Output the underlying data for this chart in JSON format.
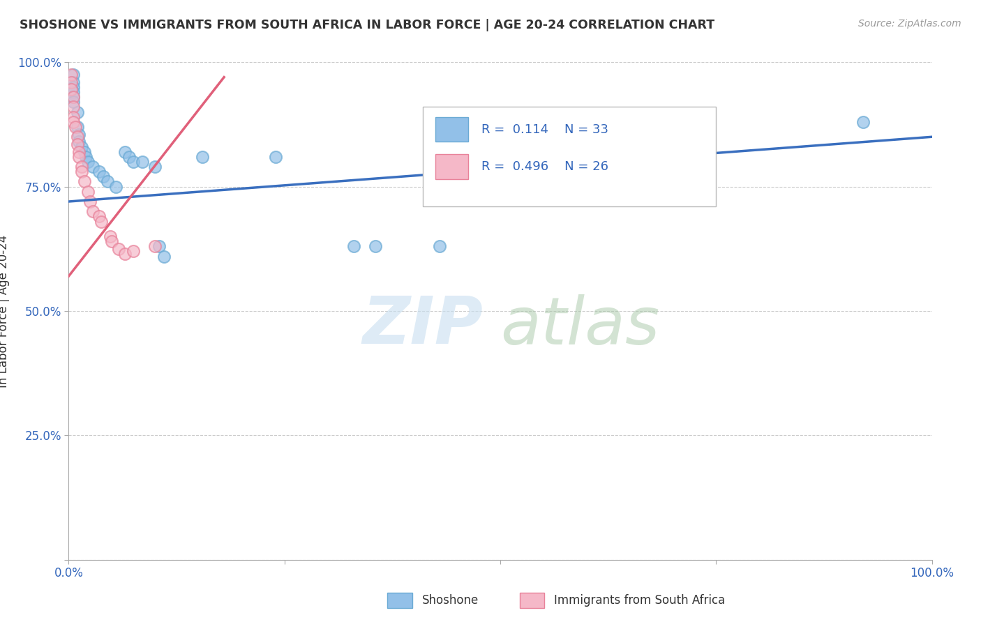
{
  "title": "SHOSHONE VS IMMIGRANTS FROM SOUTH AFRICA IN LABOR FORCE | AGE 20-24 CORRELATION CHART",
  "source": "Source: ZipAtlas.com",
  "ylabel": "In Labor Force | Age 20-24",
  "xlim": [
    0,
    1.0
  ],
  "ylim": [
    0,
    1.0
  ],
  "shoshone_color": "#92c0e8",
  "shoshone_edge": "#6aaad4",
  "immigrants_color": "#f5b8c8",
  "immigrants_edge": "#e8829a",
  "trend_shoshone_color": "#3a6fbf",
  "trend_immigrants_color": "#e0607a",
  "shoshone_x": [
    0.005,
    0.005,
    0.005,
    0.005,
    0.005,
    0.005,
    0.01,
    0.01,
    0.012,
    0.012,
    0.015,
    0.018,
    0.02,
    0.022,
    0.028,
    0.035,
    0.04,
    0.045,
    0.055,
    0.065,
    0.07,
    0.075,
    0.085,
    0.1,
    0.105,
    0.11,
    0.155,
    0.24,
    0.33,
    0.355,
    0.43,
    0.6,
    0.92
  ],
  "shoshone_y": [
    0.975,
    0.96,
    0.95,
    0.94,
    0.93,
    0.92,
    0.9,
    0.87,
    0.855,
    0.84,
    0.83,
    0.82,
    0.81,
    0.8,
    0.79,
    0.78,
    0.77,
    0.76,
    0.75,
    0.82,
    0.81,
    0.8,
    0.8,
    0.79,
    0.63,
    0.61,
    0.81,
    0.81,
    0.63,
    0.63,
    0.63,
    0.79,
    0.88
  ],
  "immigrants_x": [
    0.003,
    0.003,
    0.003,
    0.005,
    0.005,
    0.005,
    0.005,
    0.008,
    0.01,
    0.01,
    0.012,
    0.012,
    0.015,
    0.015,
    0.018,
    0.022,
    0.025,
    0.028,
    0.035,
    0.038,
    0.048,
    0.05,
    0.058,
    0.065,
    0.075,
    0.1
  ],
  "immigrants_y": [
    0.975,
    0.96,
    0.945,
    0.93,
    0.91,
    0.89,
    0.88,
    0.87,
    0.85,
    0.835,
    0.82,
    0.81,
    0.79,
    0.78,
    0.76,
    0.74,
    0.72,
    0.7,
    0.69,
    0.68,
    0.65,
    0.64,
    0.625,
    0.615,
    0.62,
    0.63
  ],
  "blue_trend_x": [
    0.0,
    1.0
  ],
  "blue_trend_y": [
    0.72,
    0.85
  ],
  "pink_trend_x": [
    0.0,
    0.18
  ],
  "pink_trend_y": [
    0.57,
    0.97
  ],
  "watermark_zip": "ZIP",
  "watermark_atlas": "atlas"
}
